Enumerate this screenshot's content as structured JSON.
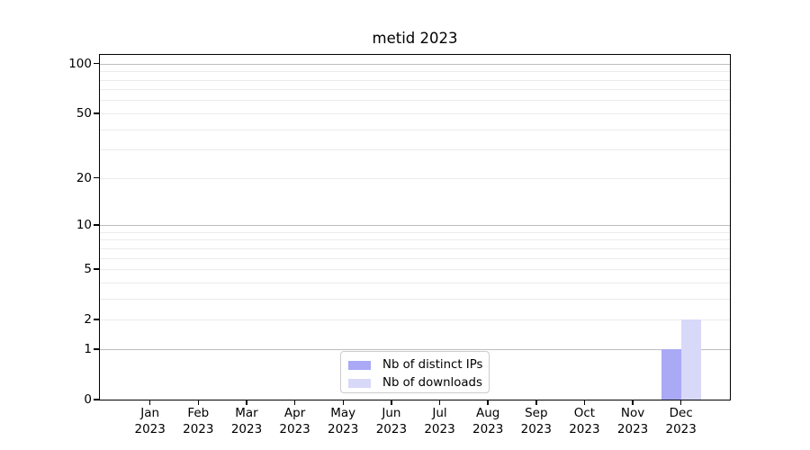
{
  "chart_data": {
    "type": "bar",
    "title": "metid 2023",
    "categories": [
      {
        "m": "Jan",
        "y": "2023"
      },
      {
        "m": "Feb",
        "y": "2023"
      },
      {
        "m": "Mar",
        "y": "2023"
      },
      {
        "m": "Apr",
        "y": "2023"
      },
      {
        "m": "May",
        "y": "2023"
      },
      {
        "m": "Jun",
        "y": "2023"
      },
      {
        "m": "Jul",
        "y": "2023"
      },
      {
        "m": "Aug",
        "y": "2023"
      },
      {
        "m": "Sep",
        "y": "2023"
      },
      {
        "m": "Oct",
        "y": "2023"
      },
      {
        "m": "Nov",
        "y": "2023"
      },
      {
        "m": "Dec",
        "y": "2023"
      }
    ],
    "series": [
      {
        "name": "Nb of distinct IPs",
        "color": "#a9a9f5",
        "values": [
          0,
          0,
          0,
          0,
          0,
          0,
          0,
          0,
          0,
          0,
          0,
          1
        ]
      },
      {
        "name": "Nb of downloads",
        "color": "#d8d8f8",
        "values": [
          0,
          0,
          0,
          0,
          0,
          0,
          0,
          0,
          0,
          0,
          0,
          2
        ]
      }
    ],
    "yscale": "symlog",
    "ylim": [
      0,
      100
    ],
    "ytick_values": [
      0,
      1,
      2,
      5,
      10,
      20,
      50,
      100
    ],
    "ytick_labels": [
      "0",
      "1",
      "2",
      "5",
      "10",
      "20",
      "50",
      "100"
    ],
    "major_grid_values": [
      1,
      10,
      100
    ],
    "minor_grid_values": [
      2,
      3,
      4,
      5,
      6,
      7,
      8,
      9,
      20,
      30,
      40,
      50,
      60,
      70,
      80,
      90
    ],
    "grid": true,
    "legend_position": "lower center",
    "style": {
      "bar_distinct_ips": "#a9a9f5",
      "bar_downloads": "#d8d8f8",
      "major_grid": "#bdbdbd",
      "minor_grid": "#ebebeb",
      "spine": "#000000",
      "legend_border": "#cccccc",
      "background": "#ffffff",
      "text": "#000000"
    }
  }
}
